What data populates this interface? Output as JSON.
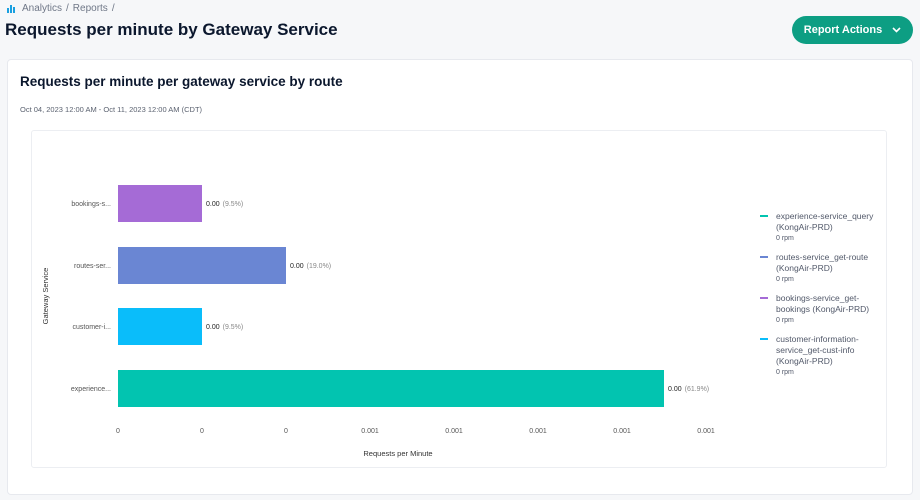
{
  "breadcrumb": {
    "icon": "bar-chart-icon",
    "items": [
      "Analytics",
      "Reports"
    ],
    "separator": "/"
  },
  "header": {
    "title": "Requests per minute by Gateway Service",
    "report_actions_label": "Report Actions"
  },
  "card": {
    "title": "Requests per minute per gateway service by route",
    "date_range": "Oct 04, 2023 12:00 AM - Oct 11, 2023 12:00 AM (CDT)"
  },
  "chart_data": {
    "type": "bar",
    "orientation": "horizontal",
    "xlabel": "Requests per Minute",
    "ylabel": "Gateway Service",
    "xlim": [
      0,
      0.0014
    ],
    "x_ticks": [
      0,
      0.0002,
      0.0004,
      0.0006,
      0.0008,
      0.001,
      0.0012,
      0.0014
    ],
    "x_tick_labels": [
      "0",
      "0",
      "0",
      "0.001",
      "0.001",
      "0.001",
      "0.001",
      "0.001"
    ],
    "grid": false,
    "legend_position": "right",
    "categories": [
      "bookings-s...",
      "routes-ser...",
      "customer-i...",
      "experience..."
    ],
    "values": [
      0.0002,
      0.0004,
      0.0002,
      0.0013
    ],
    "value_labels": [
      "0.00",
      "0.00",
      "0.00",
      "0.00"
    ],
    "percent_labels": [
      "(9.5%)",
      "(19.0%)",
      "(9.5%)",
      "(61.9%)"
    ],
    "colors": [
      "#a56bd6",
      "#6a86d3",
      "#0abdfa",
      "#02c4b0"
    ],
    "legend": [
      {
        "name": "experience-service_query (KongAir-PRD)",
        "value": "0 rpm",
        "color": "#02c4b0"
      },
      {
        "name": "routes-service_get-route (KongAir-PRD)",
        "value": "0 rpm",
        "color": "#6a86d3"
      },
      {
        "name": "bookings-service_get-bookings (KongAir-PRD)",
        "value": "0 rpm",
        "color": "#a56bd6"
      },
      {
        "name": "customer-information-service_get-cust-info (KongAir-PRD)",
        "value": "0 rpm",
        "color": "#0abdfa"
      }
    ]
  }
}
